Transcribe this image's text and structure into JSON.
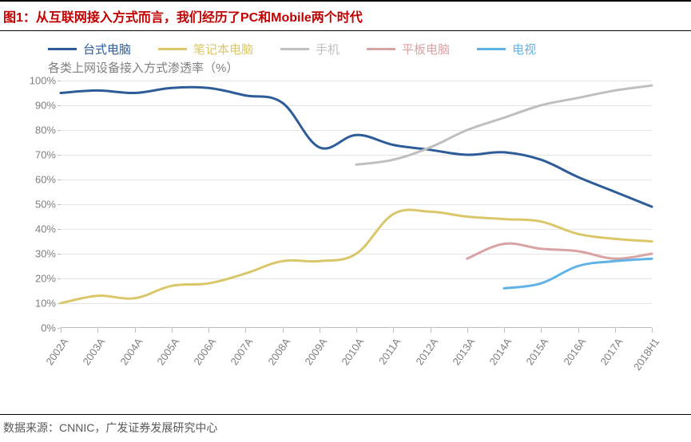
{
  "title_prefix": "图1：",
  "title_text": "从互联网接入方式而言，我们经历了PC和Mobile两个时代",
  "subtitle": "各类上网设备接入方式渗透率（%）",
  "source_label": "数据来源：",
  "source_value": "CNNIC，广发证券发展研究中心",
  "chart": {
    "type": "line",
    "categories": [
      "2002A",
      "2003A",
      "2004A",
      "2005A",
      "2006A",
      "2007A",
      "2008A",
      "2009A",
      "2010A",
      "2011A",
      "2012A",
      "2013A",
      "2014A",
      "2015A",
      "2016A",
      "2017A",
      "2018H1"
    ],
    "ymin": 0,
    "ymax": 100,
    "ytick_step": 10,
    "ytick_suffix": "%",
    "x_label_rotation_deg": -55,
    "line_width": 3,
    "grid_color": "#e6e6e6",
    "axis_color": "#bfbfbf",
    "label_color": "#7f7f7f",
    "label_fontsize": 13,
    "subtitle_fontsize": 15,
    "title_fontsize": 16,
    "title_color": "#c00000",
    "background_color": "#ffffff",
    "series": [
      {
        "name": "台式电脑",
        "color": "#2e5c99",
        "data": [
          95,
          96,
          95,
          97,
          97,
          94,
          91,
          73,
          78,
          74,
          72,
          70,
          71,
          68,
          61,
          55,
          49
        ]
      },
      {
        "name": "笔记本电脑",
        "color": "#d9c76a",
        "data": [
          10,
          13,
          12,
          17,
          18,
          22,
          27,
          27,
          30,
          46,
          47,
          45,
          44,
          43,
          38,
          36,
          35
        ]
      },
      {
        "name": "手机",
        "color": "#bfbfbf",
        "data": [
          null,
          null,
          null,
          null,
          null,
          null,
          null,
          null,
          66,
          68,
          73,
          80,
          85,
          90,
          93,
          96,
          98
        ]
      },
      {
        "name": "平板电脑",
        "color": "#d9a3a3",
        "data": [
          null,
          null,
          null,
          null,
          null,
          null,
          null,
          null,
          null,
          null,
          null,
          28,
          34,
          32,
          31,
          28,
          30
        ]
      },
      {
        "name": "电视",
        "color": "#5fb3e6",
        "data": [
          null,
          null,
          null,
          null,
          null,
          null,
          null,
          null,
          null,
          null,
          null,
          null,
          16,
          18,
          25,
          27,
          28
        ]
      }
    ]
  }
}
